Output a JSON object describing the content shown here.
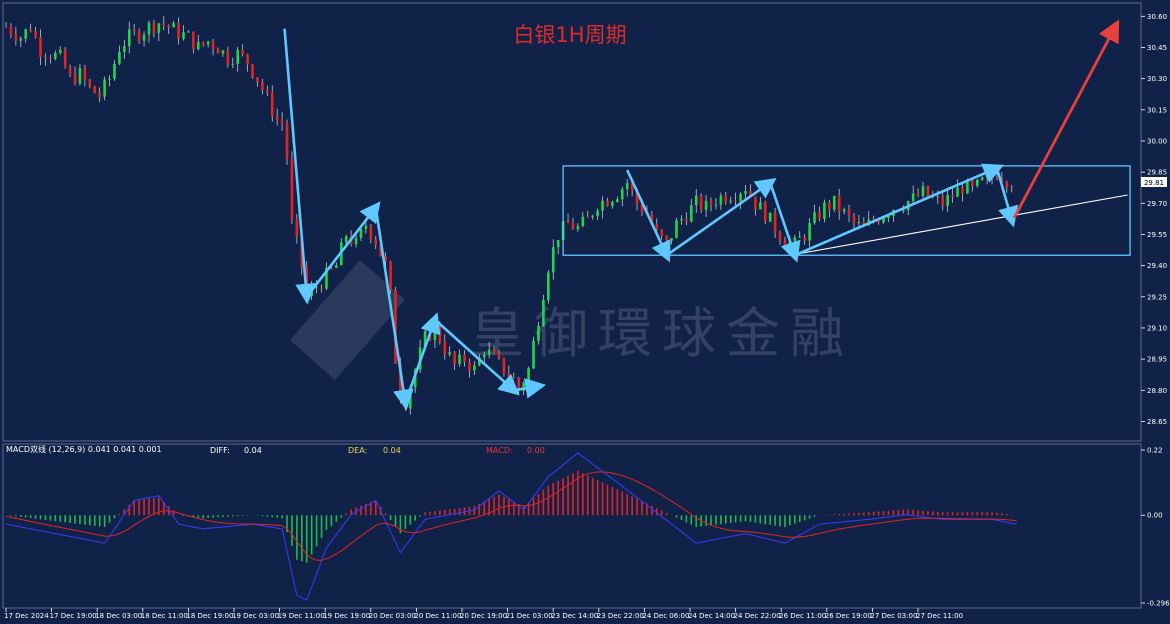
{
  "chart_data": [
    {
      "type": "candlestick",
      "title": "白银1H周期",
      "watermark": "皇御環球金融",
      "symbol_price_tag": "29.81",
      "y_ticks": [
        "30.60",
        "30.45",
        "30.30",
        "30.15",
        "30.00",
        "29.85",
        "29.70",
        "29.55",
        "29.40",
        "29.25",
        "29.10",
        "28.95",
        "28.80",
        "28.65"
      ],
      "ylim": [
        28.58,
        30.64
      ],
      "x_ticks": [
        "17 Dec 2024",
        "17 Dec 19:00",
        "18 Dec 03:00",
        "18 Dec 11:00",
        "18 Dec 19:00",
        "19 Dec 03:00",
        "19 Dec 11:00",
        "19 Dec 19:00",
        "20 Dec 03:00",
        "20 Dec 11:00",
        "20 Dec 19:00",
        "21 Dec 03:00",
        "23 Dec 14:00",
        "23 Dec 22:00",
        "24 Dec 06:00",
        "24 Dec 14:00",
        "24 Dec 22:00",
        "26 Dec 11:00",
        "26 Dec 19:00",
        "27 Dec 03:00",
        "27 Dec 11:00"
      ],
      "price_path": [
        [
          0,
          30.55
        ],
        [
          6,
          30.5
        ],
        [
          10,
          30.55
        ],
        [
          14,
          30.44
        ],
        [
          18,
          30.42
        ],
        [
          22,
          30.4
        ],
        [
          26,
          30.3
        ],
        [
          30,
          30.32
        ],
        [
          34,
          30.25
        ],
        [
          38,
          30.22
        ],
        [
          42,
          30.3
        ],
        [
          46,
          30.45
        ],
        [
          50,
          30.5
        ],
        [
          54,
          30.52
        ],
        [
          58,
          30.55
        ],
        [
          62,
          30.57
        ],
        [
          66,
          30.55
        ],
        [
          70,
          30.52
        ],
        [
          74,
          30.5
        ],
        [
          78,
          30.45
        ],
        [
          82,
          30.48
        ],
        [
          86,
          30.45
        ],
        [
          90,
          30.4
        ],
        [
          94,
          30.42
        ],
        [
          98,
          30.38
        ],
        [
          102,
          30.3
        ],
        [
          106,
          30.2
        ],
        [
          110,
          30.1
        ],
        [
          113,
          30.08
        ],
        [
          116,
          29.6
        ],
        [
          120,
          29.4
        ],
        [
          122,
          29.25
        ],
        [
          126,
          29.3
        ],
        [
          130,
          29.35
        ],
        [
          134,
          29.4
        ],
        [
          138,
          29.55
        ],
        [
          142,
          29.5
        ],
        [
          146,
          29.6
        ],
        [
          150,
          29.52
        ],
        [
          154,
          29.4
        ],
        [
          156,
          29.25
        ],
        [
          158,
          28.95
        ],
        [
          160,
          28.8
        ],
        [
          162,
          28.75
        ],
        [
          166,
          28.9
        ],
        [
          170,
          29.05
        ],
        [
          174,
          29.1
        ],
        [
          178,
          29.0
        ],
        [
          182,
          28.92
        ],
        [
          186,
          28.95
        ],
        [
          190,
          28.9
        ],
        [
          194,
          29.0
        ],
        [
          198,
          28.95
        ],
        [
          202,
          28.9
        ],
        [
          206,
          28.85
        ],
        [
          208,
          28.8
        ],
        [
          212,
          28.9
        ],
        [
          216,
          29.15
        ],
        [
          220,
          29.4
        ],
        [
          224,
          29.55
        ],
        [
          228,
          29.6
        ],
        [
          232,
          29.58
        ],
        [
          236,
          29.62
        ],
        [
          240,
          29.7
        ],
        [
          244,
          29.72
        ],
        [
          248,
          29.75
        ],
        [
          252,
          29.8
        ],
        [
          256,
          29.7
        ],
        [
          260,
          29.65
        ],
        [
          264,
          29.55
        ],
        [
          268,
          29.5
        ],
        [
          272,
          29.6
        ],
        [
          276,
          29.65
        ],
        [
          280,
          29.7
        ],
        [
          284,
          29.68
        ],
        [
          288,
          29.72
        ],
        [
          292,
          29.74
        ],
        [
          296,
          29.75
        ],
        [
          300,
          29.78
        ],
        [
          304,
          29.7
        ],
        [
          308,
          29.65
        ],
        [
          312,
          29.58
        ],
        [
          316,
          29.52
        ],
        [
          320,
          29.5
        ],
        [
          324,
          29.55
        ],
        [
          328,
          29.62
        ],
        [
          332,
          29.68
        ],
        [
          336,
          29.7
        ],
        [
          340,
          29.65
        ],
        [
          344,
          29.6
        ],
        [
          348,
          29.58
        ],
        [
          352,
          29.62
        ],
        [
          356,
          29.65
        ],
        [
          360,
          29.68
        ],
        [
          364,
          29.7
        ],
        [
          368,
          29.72
        ],
        [
          372,
          29.75
        ],
        [
          376,
          29.72
        ],
        [
          380,
          29.7
        ],
        [
          384,
          29.74
        ],
        [
          388,
          29.78
        ],
        [
          392,
          29.76
        ],
        [
          396,
          29.8
        ],
        [
          400,
          29.82
        ],
        [
          402,
          29.85
        ],
        [
          404,
          29.83
        ],
        [
          408,
          29.8
        ],
        [
          410,
          29.81
        ]
      ],
      "annotations": {
        "blue_zigzag_x": [
          113,
          122,
          150,
          162,
          174,
          206,
          216,
          252,
          268,
          310,
          320,
          402,
          408
        ],
        "blue_zigzag_y": [
          30.54,
          29.25,
          29.68,
          28.74,
          29.14,
          28.8,
          28.82,
          29.86,
          29.45,
          29.8,
          29.45,
          29.87,
          29.62
        ],
        "red_arrow_x": [
          409,
          450
        ],
        "red_arrow_y": [
          29.63,
          30.55
        ],
        "white_trend_x": [
          318,
          455
        ],
        "white_trend_y": [
          29.45,
          29.74
        ],
        "box_x": [
          226,
          456
        ],
        "box_y": [
          29.45,
          29.88
        ]
      }
    },
    {
      "type": "macd",
      "indicator_label": "MACD双线 (12,26,9) 0.041 0.041 0.001",
      "diff_label": "DIFF:",
      "diff_value": "0.04",
      "dea_label": "DEA:",
      "dea_value": "0.04",
      "macd_label": "MACD:",
      "macd_value": "0.00",
      "y_ticks": [
        "0.22",
        "0.00",
        "-0.296"
      ],
      "ylim": [
        -0.296,
        0.22
      ]
    }
  ]
}
